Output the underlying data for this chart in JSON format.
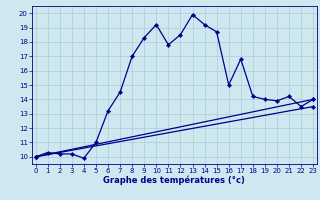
{
  "xlabel": "Graphe des températures (°c)",
  "background_color": "#cfe8f0",
  "grid_color": "#a8cdd8",
  "line_color": "#00008b",
  "ylim": [
    9.5,
    20.5
  ],
  "xlim": [
    -0.3,
    23.3
  ],
  "yticks": [
    10,
    11,
    12,
    13,
    14,
    15,
    16,
    17,
    18,
    19,
    20
  ],
  "xticks": [
    0,
    1,
    2,
    3,
    4,
    5,
    6,
    7,
    8,
    9,
    10,
    11,
    12,
    13,
    14,
    15,
    16,
    17,
    18,
    19,
    20,
    21,
    22,
    23
  ],
  "series1_x": [
    0,
    1,
    2,
    3,
    4,
    5,
    6,
    7,
    8,
    9,
    10,
    11,
    12,
    13,
    14,
    15,
    16,
    17,
    18,
    19,
    20,
    21,
    22,
    23
  ],
  "series1_y": [
    10.0,
    10.3,
    10.2,
    10.2,
    9.9,
    11.0,
    13.2,
    14.5,
    17.0,
    18.3,
    19.2,
    17.8,
    18.5,
    19.9,
    19.2,
    18.7,
    15.0,
    16.8,
    14.2,
    14.0,
    13.9,
    14.2,
    13.5,
    14.0
  ],
  "series2_x": [
    0,
    23
  ],
  "series2_y": [
    10.0,
    14.0
  ],
  "series3_x": [
    0,
    23
  ],
  "series3_y": [
    10.0,
    13.5
  ],
  "tick_fontsize": 5,
  "xlabel_fontsize": 6
}
